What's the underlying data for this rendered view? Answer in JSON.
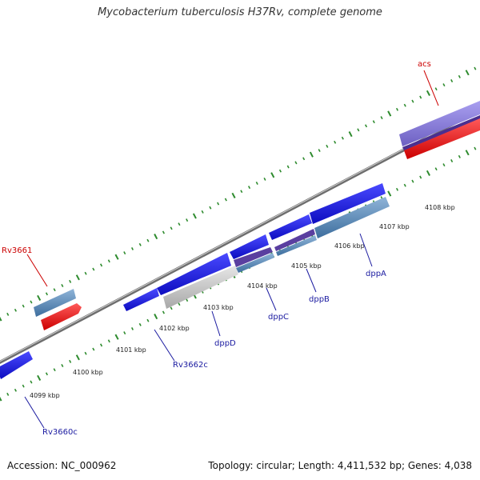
{
  "title": "Mycobacterium tuberculosis H37Rv, complete genome",
  "footer": {
    "accession": "Accession: NC_000962",
    "stats": "Topology: circular; Length: 4,411,532 bp; Genes: 4,038"
  },
  "colors": {
    "backbone": "#8a8a8a",
    "tick": "#2e8b2e",
    "cds_forward": "#1515e6",
    "gene_blue": "#4f86b8",
    "gene_purple": "#5a3fa0",
    "gene_lavender": "#8a7fd6",
    "gene_red": "#ee1111",
    "gene_grey": "#bdbdbd",
    "label_blue": "#1a1aa0",
    "label_red": "#cc0000"
  },
  "kbp_labels": [
    "4099 kbp",
    "4100 kbp",
    "4101 kbp",
    "4102 kbp",
    "4103 kbp",
    "4104 kbp",
    "4105 kbp",
    "4106 kbp",
    "4107 kbp",
    "4108 kbp"
  ],
  "gene_labels": [
    {
      "text": "Rv3660c",
      "color": "blue"
    },
    {
      "text": "Rv3661",
      "color": "red"
    },
    {
      "text": "Rv3662c",
      "color": "blue"
    },
    {
      "text": "dppD",
      "color": "blue"
    },
    {
      "text": "dppC",
      "color": "blue"
    },
    {
      "text": "dppB",
      "color": "blue"
    },
    {
      "text": "dppA",
      "color": "blue"
    },
    {
      "text": "acs",
      "color": "red"
    }
  ]
}
